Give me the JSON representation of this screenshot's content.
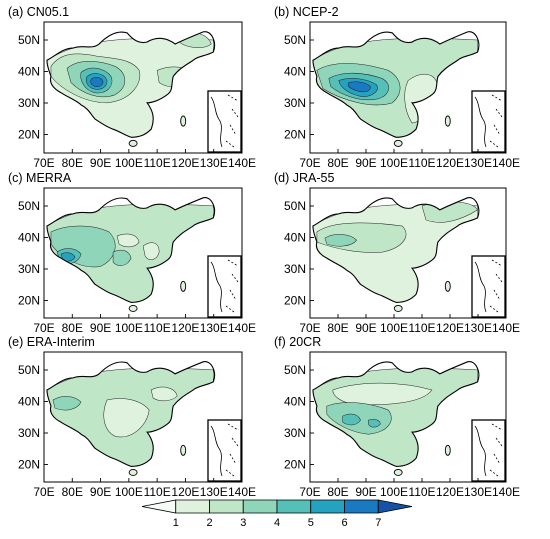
{
  "panels": [
    {
      "label": "(a) CN05.1",
      "levels": "a"
    },
    {
      "label": "(b) NCEP-2",
      "levels": "b"
    },
    {
      "label": "(c) MERRA",
      "levels": "c"
    },
    {
      "label": "(d) JRA-55",
      "levels": "d"
    },
    {
      "label": "(e) ERA-Interim",
      "levels": "e"
    },
    {
      "label": "(f) 20CR",
      "levels": "f"
    }
  ],
  "axes": {
    "xticks": [
      "70E",
      "80E",
      "90E",
      "100E",
      "110E",
      "120E",
      "130E",
      "140E"
    ],
    "yticks": [
      "50N",
      "40N",
      "30N",
      "20N"
    ]
  },
  "colorbar": {
    "ticks": [
      "1",
      "2",
      "3",
      "4",
      "5",
      "6",
      "7"
    ],
    "colors": [
      "#f5fbf5",
      "#dff2de",
      "#bfe6c6",
      "#8fd5ba",
      "#55bfb8",
      "#26a2c1",
      "#1a7ac1",
      "#1453a5"
    ]
  }
}
